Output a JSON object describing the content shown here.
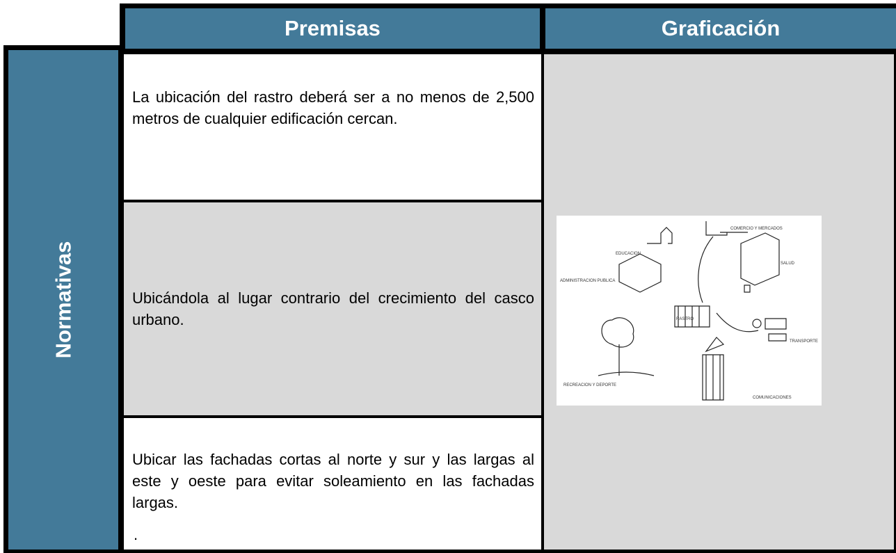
{
  "header": {
    "premisas": "Premisas",
    "graficacion": "Graficación"
  },
  "row_header": "Normativas",
  "rows": [
    {
      "text": "La ubicación del rastro deberá ser a no menos de 2,500 metros de cualquier edificación cercan."
    },
    {
      "text": "Ubicándola al lugar contrario del crecimiento del casco urbano."
    },
    {
      "text": "Ubicar las fachadas cortas al norte y sur y las largas al este y oeste para evitar soleamiento en las fachadas largas.",
      "note": "."
    }
  ],
  "diagram": {
    "labels": [
      "EDUCACION",
      "COMERCIO Y MERCADOS",
      "SALUD",
      "ADMINISTRACION PUBLICA",
      "RASTRO",
      "TRANSPORTE",
      "RECREACION Y DEPORTE",
      "COMUNICACIONES"
    ]
  }
}
